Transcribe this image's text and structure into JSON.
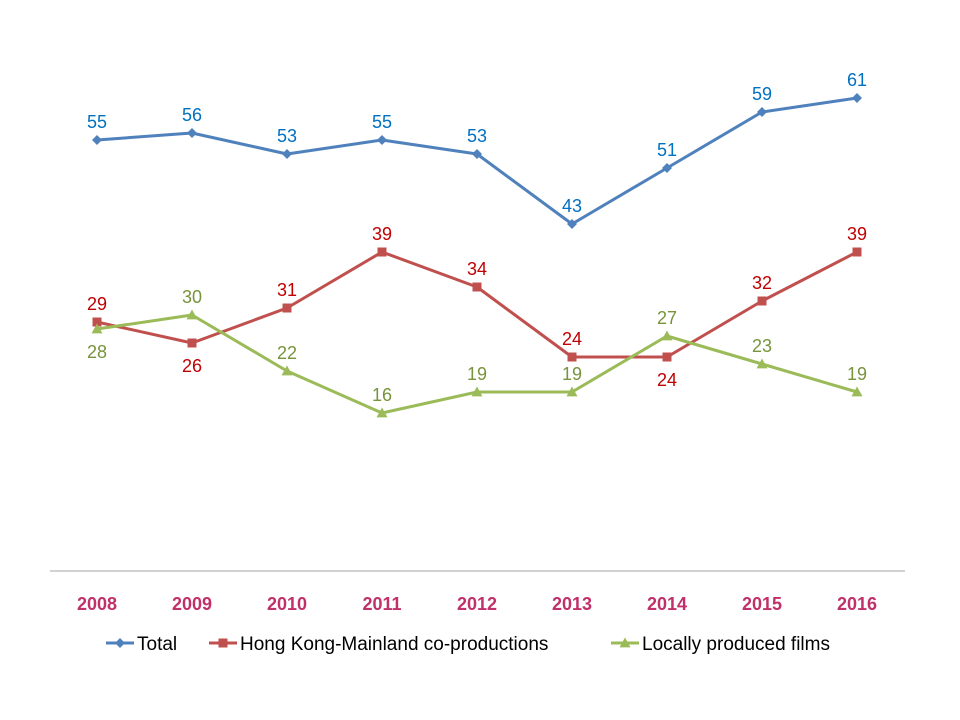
{
  "chart_data": {
    "type": "line",
    "title": "",
    "xlabel": "",
    "ylabel": "",
    "categories": [
      "2008",
      "2009",
      "2010",
      "2011",
      "2012",
      "2013",
      "2014",
      "2015",
      "2016"
    ],
    "ylim": [
      0,
      75
    ],
    "y_axis_visible": false,
    "grid": false,
    "legend_position": "bottom",
    "data_labels": true,
    "category_label_color": "#C0306A",
    "axis_color": "#A6A6A6",
    "series": [
      {
        "name": "Total",
        "values": [
          55,
          56,
          53,
          55,
          53,
          43,
          51,
          59,
          61
        ],
        "color": "#4F81BD",
        "label_color": "#0070C0",
        "marker": "diamond",
        "label_position": [
          "above",
          "above",
          "above",
          "above",
          "above",
          "above",
          "above",
          "above",
          "above"
        ]
      },
      {
        "name": "Hong Kong-Mainland co-productions",
        "values": [
          29,
          26,
          31,
          39,
          34,
          24,
          24,
          32,
          39
        ],
        "color": "#C0504D",
        "label_color": "#C00000",
        "marker": "square",
        "label_position": [
          "above",
          "below",
          "above",
          "above",
          "above",
          "above",
          "below",
          "above",
          "above"
        ]
      },
      {
        "name": "Locally produced films",
        "values": [
          28,
          30,
          22,
          16,
          19,
          19,
          27,
          23,
          19
        ],
        "color": "#9BBB59",
        "label_color": "#77933C",
        "marker": "triangle",
        "label_position": [
          "below",
          "above",
          "above",
          "above",
          "above",
          "above",
          "above",
          "above",
          "above"
        ]
      }
    ]
  }
}
